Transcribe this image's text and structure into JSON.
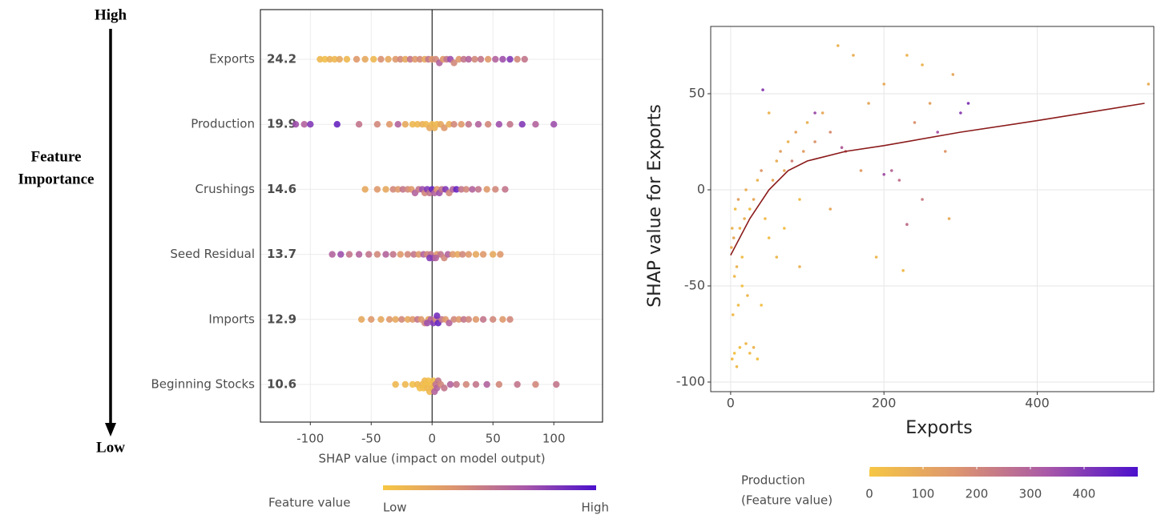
{
  "chart_data": [
    {
      "type": "beeswarm",
      "categories": [
        "Exports",
        "Production",
        "Crushings",
        "Seed Residual",
        "Imports",
        "Beginning Stocks"
      ],
      "importance": [
        24.2,
        19.9,
        14.6,
        13.7,
        12.9,
        10.6
      ],
      "points": [
        {
          "values": [
            -92,
            -88,
            -84,
            -80,
            -76,
            -70,
            -62,
            -55,
            -48,
            -42,
            -36,
            -30,
            -26,
            -22,
            -18,
            -14,
            -10,
            -6,
            -3,
            0,
            3,
            6,
            9,
            12,
            15,
            18,
            22,
            26,
            30,
            35,
            40,
            46,
            52,
            58,
            64,
            70,
            76
          ],
          "feature_values": [
            0.1,
            0.05,
            0.15,
            0.1,
            0.2,
            0.1,
            0.3,
            0.2,
            0.1,
            0.35,
            0.2,
            0.3,
            0.4,
            0.2,
            0.5,
            0.3,
            0.4,
            0.2,
            0.5,
            0.3,
            0.4,
            0.6,
            0.3,
            0.5,
            0.7,
            0.4,
            0.3,
            0.5,
            0.6,
            0.4,
            0.5,
            0.3,
            0.6,
            0.7,
            0.8,
            0.4,
            0.5
          ]
        },
        {
          "values": [
            -112,
            -105,
            -100,
            -78,
            -60,
            -45,
            -35,
            -28,
            -22,
            -16,
            -12,
            -8,
            -5,
            -2,
            0,
            2,
            4,
            7,
            10,
            14,
            18,
            24,
            30,
            38,
            46,
            55,
            64,
            74,
            85,
            100
          ],
          "feature_values": [
            0.7,
            0.6,
            0.8,
            0.9,
            0.5,
            0.4,
            0.3,
            0.6,
            0.2,
            0.1,
            0.1,
            0.15,
            0.1,
            0.2,
            0.1,
            0.15,
            0.1,
            0.2,
            0.3,
            0.15,
            0.4,
            0.3,
            0.5,
            0.6,
            0.4,
            0.7,
            0.5,
            0.8,
            0.6,
            0.7
          ]
        },
        {
          "values": [
            -55,
            -45,
            -38,
            -32,
            -28,
            -24,
            -20,
            -17,
            -14,
            -11,
            -8,
            -6,
            -4,
            -2,
            0,
            2,
            4,
            6,
            8,
            11,
            14,
            17,
            20,
            24,
            28,
            33,
            38,
            45,
            52,
            60
          ],
          "feature_values": [
            0.2,
            0.3,
            0.2,
            0.4,
            0.3,
            0.5,
            0.4,
            0.3,
            0.6,
            0.5,
            0.7,
            0.4,
            0.8,
            0.5,
            0.9,
            0.6,
            0.3,
            0.7,
            0.5,
            0.8,
            0.4,
            0.6,
            0.9,
            0.5,
            0.4,
            0.6,
            0.5,
            0.3,
            0.4,
            0.5
          ]
        },
        {
          "values": [
            -82,
            -75,
            -68,
            -60,
            -52,
            -45,
            -38,
            -32,
            -26,
            -20,
            -15,
            -11,
            -7,
            -4,
            -1,
            1,
            4,
            7,
            10,
            13,
            17,
            21,
            25,
            30,
            36,
            42,
            50,
            56,
            -2,
            3
          ],
          "feature_values": [
            0.6,
            0.7,
            0.5,
            0.6,
            0.5,
            0.4,
            0.6,
            0.5,
            0.3,
            0.4,
            0.5,
            0.3,
            0.6,
            0.4,
            0.5,
            0.7,
            0.3,
            0.5,
            0.4,
            0.6,
            0.3,
            0.2,
            0.4,
            0.3,
            0.2,
            0.3,
            0.2,
            0.3,
            0.8,
            0.6
          ]
        },
        {
          "values": [
            -58,
            -50,
            -42,
            -35,
            -30,
            -25,
            -20,
            -16,
            -12,
            -9,
            -6,
            -3,
            -1,
            1,
            3,
            5,
            8,
            11,
            14,
            18,
            22,
            26,
            30,
            36,
            42,
            50,
            58,
            64,
            4,
            -4
          ],
          "feature_values": [
            0.2,
            0.3,
            0.2,
            0.3,
            0.2,
            0.4,
            0.2,
            0.3,
            0.5,
            0.3,
            0.4,
            0.2,
            0.6,
            0.8,
            0.4,
            0.9,
            0.5,
            0.3,
            0.6,
            0.4,
            0.3,
            0.5,
            0.4,
            0.3,
            0.5,
            0.4,
            0.3,
            0.4,
            0.85,
            0.7
          ]
        },
        {
          "values": [
            -30,
            -22,
            -16,
            -12,
            -10,
            -8,
            -7,
            -6,
            -5,
            -4,
            -3,
            -2,
            -1,
            0,
            1,
            2,
            3,
            4,
            5,
            7,
            10,
            15,
            20,
            28,
            36,
            45,
            55,
            70,
            85,
            102
          ],
          "feature_values": [
            0.1,
            0.1,
            0.05,
            0.1,
            0.05,
            0.1,
            0.05,
            0.1,
            0.05,
            0.1,
            0.05,
            0.1,
            0.05,
            0.1,
            0.05,
            0.6,
            0.5,
            0.6,
            0.5,
            0.4,
            0.5,
            0.6,
            0.5,
            0.4,
            0.5,
            0.6,
            0.4,
            0.5,
            0.4,
            0.5
          ]
        }
      ],
      "xlim": [
        -141,
        140
      ],
      "xticks": [
        -100,
        -50,
        0,
        50,
        100
      ],
      "xlabel": "SHAP value (impact on model output)",
      "grid": true,
      "importance_axis": {
        "top": "High",
        "label": [
          "Feature",
          "Importance"
        ],
        "bottom": "Low"
      },
      "colorbar": {
        "title": "Feature value",
        "lim": [
          0,
          1
        ],
        "ticks": [
          {
            "value": 0,
            "label": "Low"
          },
          {
            "value": 1,
            "label": "High"
          }
        ],
        "colors": [
          "#f6c744",
          "#dc9470",
          "#a858a8",
          "#4b10cc"
        ]
      }
    },
    {
      "type": "scatter",
      "x": [
        2,
        5,
        8,
        12,
        20,
        25,
        30,
        35,
        3,
        10,
        22,
        40,
        5,
        8,
        15,
        1,
        4,
        12,
        18,
        25,
        30,
        2,
        6,
        10,
        20,
        35,
        40,
        45,
        50,
        55,
        60,
        65,
        70,
        75,
        80,
        85,
        90,
        95,
        100,
        110,
        120,
        130,
        140,
        150,
        160,
        170,
        180,
        190,
        200,
        210,
        220,
        225,
        230,
        240,
        250,
        260,
        270,
        280,
        285,
        290,
        300,
        310,
        250,
        42,
        110,
        145,
        200,
        230,
        60,
        70,
        90,
        15,
        545,
        50,
        130
      ],
      "y": [
        -88,
        -85,
        -92,
        -82,
        -80,
        -85,
        -82,
        -88,
        -65,
        -60,
        -55,
        -60,
        -45,
        -40,
        -35,
        -30,
        -25,
        -20,
        -15,
        -10,
        -5,
        -20,
        -10,
        -5,
        0,
        5,
        10,
        -15,
        -25,
        5,
        15,
        20,
        10,
        25,
        15,
        30,
        -5,
        20,
        35,
        25,
        40,
        30,
        75,
        20,
        70,
        10,
        45,
        -35,
        55,
        10,
        5,
        -42,
        70,
        35,
        -5,
        45,
        30,
        20,
        -15,
        60,
        40,
        45,
        65,
        52,
        40,
        22,
        8,
        -18,
        -35,
        -20,
        -40,
        -50,
        55,
        40,
        -10
      ],
      "color_values": [
        30,
        20,
        40,
        25,
        50,
        30,
        60,
        20,
        40,
        30,
        50,
        20,
        40,
        60,
        30,
        80,
        100,
        50,
        70,
        40,
        90,
        60,
        30,
        120,
        80,
        60,
        150,
        40,
        30,
        100,
        80,
        120,
        90,
        60,
        200,
        110,
        40,
        130,
        70,
        160,
        90,
        180,
        60,
        220,
        80,
        130,
        100,
        50,
        90,
        280,
        250,
        40,
        60,
        170,
        230,
        120,
        330,
        150,
        90,
        100,
        380,
        400,
        60,
        380,
        350,
        300,
        340,
        260,
        50,
        30,
        70,
        20,
        80,
        60,
        100
      ],
      "trend": {
        "x": [
          0,
          25,
          50,
          75,
          100,
          150,
          200,
          300,
          400,
          540
        ],
        "y": [
          -34,
          -15,
          0,
          10,
          15,
          20,
          23,
          30,
          36,
          45
        ],
        "color": "#8b1a1a"
      },
      "xlim": [
        -26,
        552
      ],
      "ylim": [
        -105,
        85
      ],
      "xticks": [
        0,
        200,
        400
      ],
      "yticks": [
        -100,
        -50,
        0,
        50
      ],
      "xlabel": "Exports",
      "ylabel": "SHAP value for Exports",
      "grid": true,
      "colorbar": {
        "title": [
          "Production",
          "(Feature value)"
        ],
        "lim": [
          0,
          500
        ],
        "ticks": [
          0,
          100,
          200,
          300,
          400
        ],
        "colors": [
          "#f6c744",
          "#dc9470",
          "#a858a8",
          "#4b10cc"
        ]
      }
    }
  ]
}
